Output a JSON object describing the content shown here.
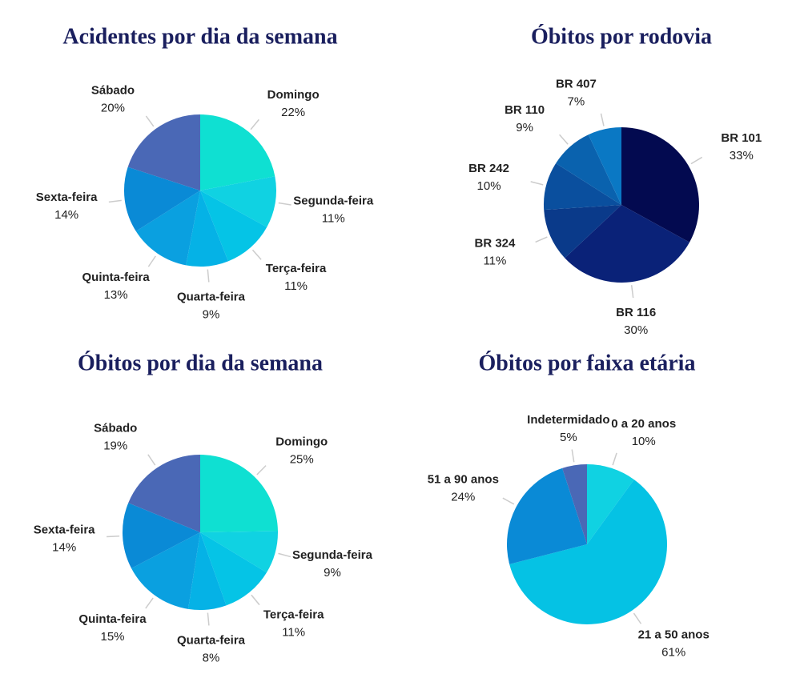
{
  "chart_data": [
    {
      "type": "pie",
      "title": "Acidentes por dia da semana",
      "categories": [
        "Domingo",
        "Segunda-feira",
        "Terça-feira",
        "Quarta-feira",
        "Quinta-feira",
        "Sexta-feira",
        "Sábado"
      ],
      "values": [
        22,
        11,
        11,
        9,
        13,
        14,
        20
      ],
      "value_labels": [
        "22%",
        "11%",
        "11%",
        "9%",
        "13%",
        "14%",
        "20%"
      ],
      "colors": [
        "#0fe0d2",
        "#10d2e2",
        "#05c4e6",
        "#05b2e6",
        "#0aa0e0",
        "#0a8ad6",
        "#4a68b6"
      ]
    },
    {
      "type": "pie",
      "title": "Óbitos por rodovia",
      "categories": [
        "BR 101",
        "BR 116",
        "BR 324",
        "BR 242",
        "BR 110",
        "BR 407"
      ],
      "values": [
        33,
        30,
        11,
        10,
        9,
        7
      ],
      "value_labels": [
        "33%",
        "30%",
        "11%",
        "10%",
        "9%",
        "7%"
      ],
      "colors": [
        "#030a50",
        "#0a2278",
        "#0a3a8a",
        "#0a4f9e",
        "#0a62ae",
        "#0a78c4"
      ]
    },
    {
      "type": "pie",
      "title": "Óbitos por dia da semana",
      "categories": [
        "Domingo",
        "Segunda-feira",
        "Terça-feira",
        "Quarta-feira",
        "Quinta-feira",
        "Sexta-feira",
        "Sábado"
      ],
      "values": [
        25,
        9,
        11,
        8,
        15,
        14,
        19
      ],
      "value_labels": [
        "25%",
        "9%",
        "11%",
        "8%",
        "15%",
        "14%",
        "19%"
      ],
      "colors": [
        "#0fe0d2",
        "#10d2e2",
        "#05c4e6",
        "#05b2e6",
        "#0aa0e0",
        "#0a8ad6",
        "#4a68b6"
      ]
    },
    {
      "type": "pie",
      "title": "Óbitos por faixa etária",
      "categories": [
        "0 a 20 anos",
        "21 a 50 anos",
        "51 a 90 anos",
        "Indetermidado"
      ],
      "values": [
        10,
        61,
        24,
        5
      ],
      "value_labels": [
        "10%",
        "61%",
        "24%",
        "5%"
      ],
      "colors": [
        "#10d2e2",
        "#05c2e4",
        "#0a8ad6",
        "#4a68b6"
      ]
    }
  ]
}
